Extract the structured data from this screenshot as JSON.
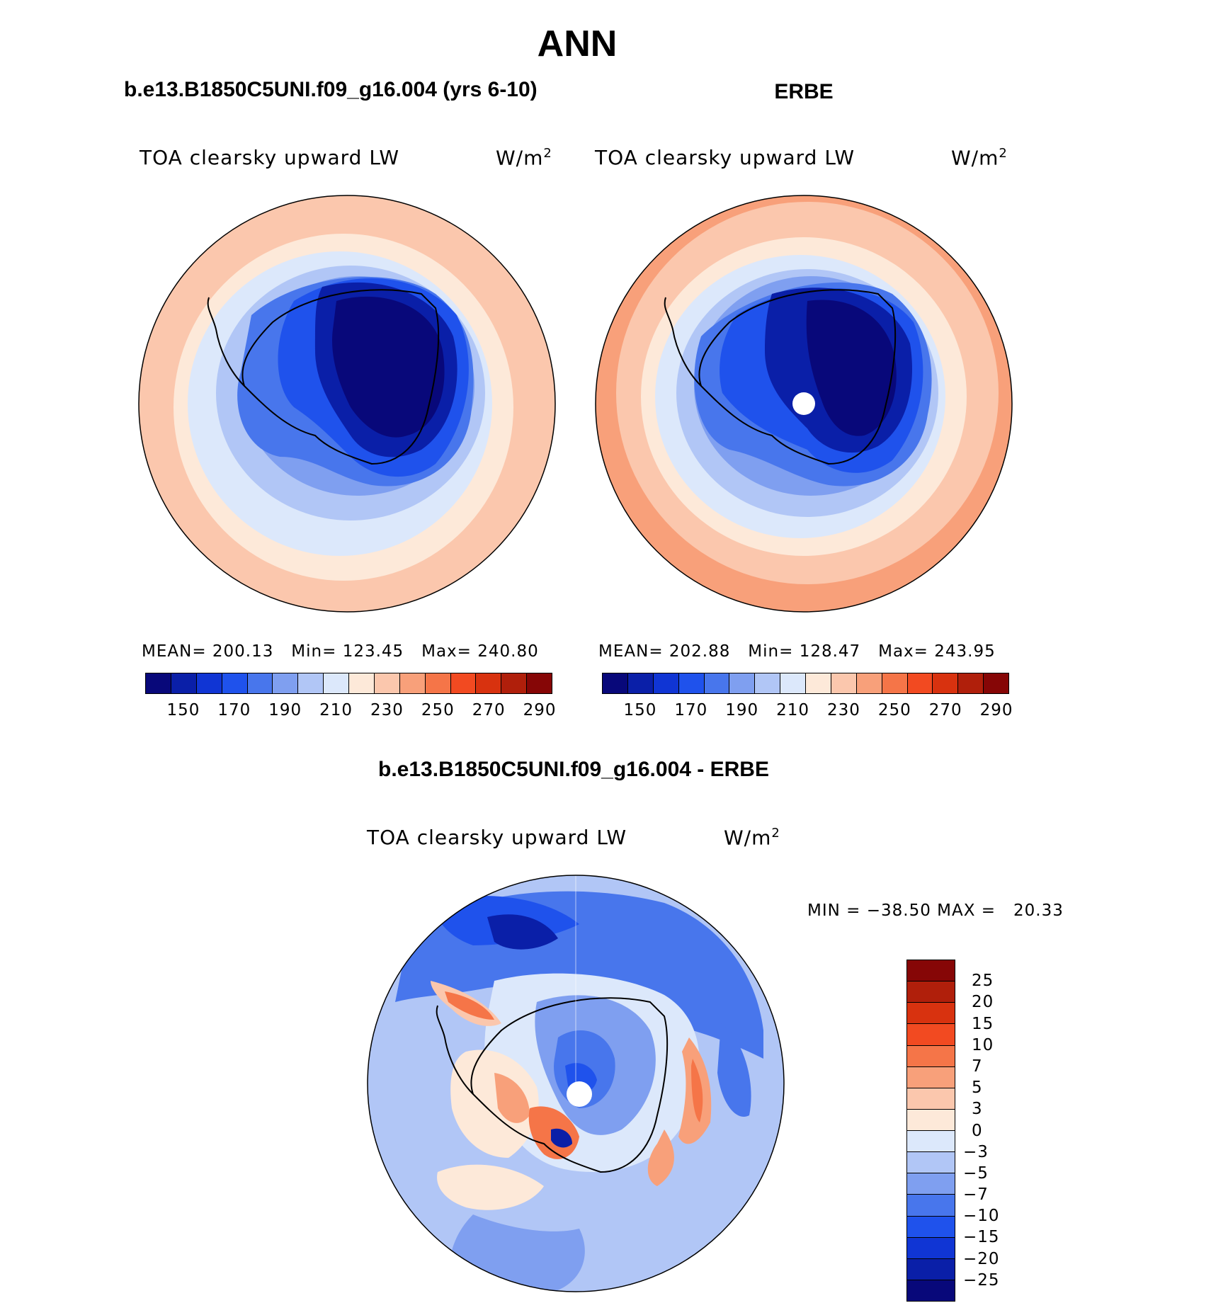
{
  "title": "ANN",
  "left_panel": {
    "case_title": "b.e13.B1850C5UNI.f09_g16.004 (yrs 6-10)",
    "subtitle": "TOA clearsky upward LW",
    "units": "W/m",
    "units_sup": "2",
    "stats": "MEAN= 200.13   Min= 123.45   Max= 240.80"
  },
  "right_panel": {
    "case_title": "ERBE",
    "subtitle": "TOA clearsky upward LW",
    "units": "W/m",
    "units_sup": "2",
    "stats": "MEAN= 202.88   Min= 128.47   Max= 243.95"
  },
  "diff_panel": {
    "case_title": "b.e13.B1850C5UNI.f09_g16.004 - ERBE",
    "subtitle": "TOA clearsky upward LW",
    "units": "W/m",
    "units_sup": "2",
    "stats": "MIN = −38.50 MAX =   20.33"
  },
  "colorbar_top": {
    "tick_labels": [
      "150",
      "170",
      "190",
      "210",
      "230",
      "250",
      "270",
      "290"
    ],
    "colors": [
      "#08087a",
      "#0a1fa8",
      "#1035d4",
      "#1f52ec",
      "#4876ec",
      "#7f9ff0",
      "#b1c6f6",
      "#dce8fb",
      "#fde9d9",
      "#fbc7ad",
      "#f8a07a",
      "#f57548",
      "#f24a21",
      "#d8320f",
      "#b01f0b",
      "#860606"
    ]
  },
  "colorbar_diff": {
    "tick_labels": [
      "25",
      "20",
      "15",
      "10",
      "7",
      "5",
      "3",
      "0",
      "−3",
      "−5",
      "−7",
      "−10",
      "−15",
      "−20",
      "−25"
    ],
    "colors": [
      "#860606",
      "#b01f0b",
      "#d8320f",
      "#f24a21",
      "#f57548",
      "#f8a07a",
      "#fbc7ad",
      "#fde9d9",
      "#dce8fb",
      "#b1c6f6",
      "#7f9ff0",
      "#4876ec",
      "#1f52ec",
      "#1035d4",
      "#0a1fa8",
      "#08087a"
    ]
  },
  "chart_data": [
    {
      "type": "heatmap",
      "title": "b.e13.B1850C5UNI.f09_g16.004 (yrs 6-10)",
      "variable": "TOA clearsky upward LW",
      "units": "W/m2",
      "mean": 200.13,
      "min": 123.45,
      "max": 240.8,
      "levels": [
        150,
        160,
        170,
        180,
        190,
        200,
        210,
        220,
        230,
        240,
        250,
        260,
        270,
        280,
        290
      ]
    },
    {
      "type": "heatmap",
      "title": "ERBE",
      "variable": "TOA clearsky upward LW",
      "units": "W/m2",
      "mean": 202.88,
      "min": 128.47,
      "max": 243.95,
      "levels": [
        150,
        160,
        170,
        180,
        190,
        200,
        210,
        220,
        230,
        240,
        250,
        260,
        270,
        280,
        290
      ]
    },
    {
      "type": "heatmap",
      "title": "b.e13.B1850C5UNI.f09_g16.004 - ERBE",
      "variable": "TOA clearsky upward LW",
      "units": "W/m2",
      "min": -38.5,
      "max": 20.33,
      "levels": [
        -25,
        -20,
        -15,
        -10,
        -7,
        -5,
        -3,
        0,
        3,
        5,
        7,
        10,
        15,
        20,
        25
      ]
    }
  ]
}
